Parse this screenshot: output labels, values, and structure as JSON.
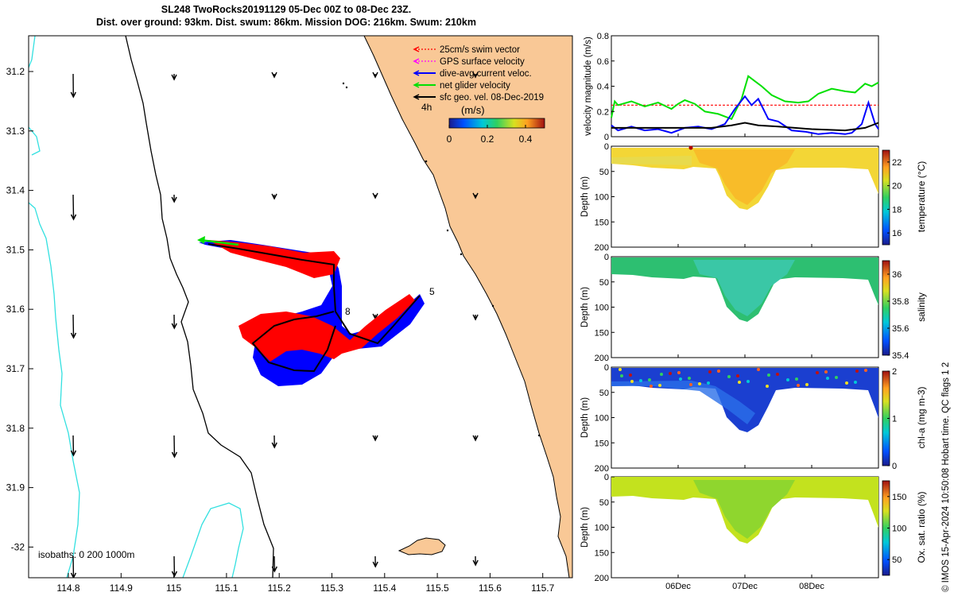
{
  "title": {
    "line1": "SL248 TwoRocks20191129 05-Dec 00Z to 08-Dec 23Z.",
    "line2": "Dist. over ground: 93km. Dist. swum: 86km. Mission DOG: 216km. Swum: 210km"
  },
  "credit": "© IMOS 15-Apr-2024 10:50:08 Hobart time. QC flags 1  2",
  "colors": {
    "land": "#f9c896",
    "coast": "#000000",
    "isobath_200": "#000000",
    "isobath_1000": "#33e0e0",
    "swim": "#ff0000",
    "current": "#0000ff",
    "net": "#00e000",
    "gps": "#ff00ff",
    "geo": "#000000"
  },
  "map": {
    "xticks": [
      "114.8",
      "114.9",
      "115",
      "115.1",
      "115.2",
      "115.3",
      "115.4",
      "115.5",
      "115.6",
      "115.7"
    ],
    "yticks": [
      "31.2",
      "31.3",
      "31.4",
      "31.5",
      "31.6",
      "31.7",
      "31.8",
      "31.9",
      "-32"
    ],
    "legend": [
      {
        "label": "25cm/s swim vector",
        "color": "#ff0000",
        "icon": "dashed-arrow-icon"
      },
      {
        "label": "GPS surface velocity",
        "color": "#ff00ff",
        "icon": "dashed-arrow-icon"
      },
      {
        "label": "dive-avg current veloc.",
        "color": "#0000ff",
        "icon": "arrow-icon"
      },
      {
        "label": "net glider velocity",
        "color": "#00e000",
        "icon": "arrow-icon"
      },
      {
        "label": "sfc geo. vel. 08-Dec-2019",
        "color": "#000000",
        "icon": "arrow-icon"
      }
    ],
    "time_label": "4h",
    "colorbar_unit": "(m/s)",
    "colorbar_ticks": [
      "0",
      "0.2",
      "0.4"
    ],
    "colorbar_range": [
      0,
      0.5
    ],
    "isobaths_label": "isobaths: 0   200  1000m",
    "track_labels": [
      "5",
      "8"
    ]
  },
  "chart_data": [
    {
      "type": "line",
      "ylabel": "velocity magnitude (m/s)",
      "ylim": [
        0,
        0.8
      ],
      "yticks": [
        "0",
        "0.2",
        "0.4",
        "0.6",
        "0.8"
      ],
      "xlim_days": [
        5,
        9
      ],
      "series": [
        {
          "color": "#ff0000",
          "style": "dashed",
          "x": [
            5.0,
            9.0
          ],
          "y": [
            0.25,
            0.25
          ]
        },
        {
          "color": "#00e000",
          "x": [
            5.0,
            5.05,
            5.1,
            5.3,
            5.5,
            5.7,
            5.9,
            6.0,
            6.1,
            6.25,
            6.4,
            6.6,
            6.8,
            6.95,
            7.05,
            7.15,
            7.25,
            7.4,
            7.6,
            7.8,
            7.95,
            8.1,
            8.3,
            8.5,
            8.65,
            8.8,
            8.9,
            9.0
          ],
          "y": [
            0.15,
            0.28,
            0.25,
            0.28,
            0.24,
            0.27,
            0.22,
            0.26,
            0.29,
            0.26,
            0.2,
            0.18,
            0.14,
            0.3,
            0.48,
            0.44,
            0.4,
            0.33,
            0.28,
            0.27,
            0.28,
            0.34,
            0.38,
            0.36,
            0.35,
            0.42,
            0.4,
            0.43
          ]
        },
        {
          "color": "#0000ff",
          "x": [
            5.0,
            5.1,
            5.3,
            5.5,
            5.7,
            5.9,
            6.1,
            6.3,
            6.5,
            6.7,
            6.85,
            7.0,
            7.1,
            7.2,
            7.35,
            7.5,
            7.7,
            7.9,
            8.1,
            8.3,
            8.5,
            8.6,
            8.75,
            8.85,
            8.95,
            9.0
          ],
          "y": [
            0.09,
            0.05,
            0.08,
            0.05,
            0.06,
            0.03,
            0.07,
            0.08,
            0.06,
            0.1,
            0.22,
            0.32,
            0.25,
            0.3,
            0.14,
            0.12,
            0.05,
            0.04,
            0.02,
            0.03,
            0.02,
            0.03,
            0.1,
            0.27,
            0.1,
            0.06
          ]
        },
        {
          "color": "#000000",
          "x": [
            5.0,
            5.5,
            6.0,
            6.5,
            6.8,
            7.0,
            7.2,
            7.5,
            8.0,
            8.5,
            8.8,
            9.0
          ],
          "y": [
            0.07,
            0.07,
            0.07,
            0.07,
            0.09,
            0.11,
            0.09,
            0.08,
            0.06,
            0.05,
            0.07,
            0.11
          ]
        }
      ]
    },
    {
      "type": "heatmap",
      "ylabel": "Depth (m)",
      "ylim": [
        0,
        200
      ],
      "yticks": [
        "0",
        "50",
        "100",
        "150",
        "200"
      ],
      "cbar_label": "temperature (°C)",
      "cbar_range": [
        15,
        23
      ],
      "cbar_ticks": [
        "16",
        "18",
        "20",
        "22"
      ]
    },
    {
      "type": "heatmap",
      "ylabel": "Depth (m)",
      "ylim": [
        0,
        200
      ],
      "yticks": [
        "0",
        "50",
        "100",
        "150",
        "200"
      ],
      "cbar_label": "salinity",
      "cbar_range": [
        35.4,
        36.1
      ],
      "cbar_ticks": [
        "35.4",
        "35.6",
        "35.8",
        "36"
      ]
    },
    {
      "type": "heatmap",
      "ylabel": "Depth (m)",
      "ylim": [
        0,
        200
      ],
      "yticks": [
        "0",
        "50",
        "100",
        "150",
        "200"
      ],
      "cbar_label": "chl-a (mg m-3)",
      "cbar_range": [
        0,
        2
      ],
      "cbar_ticks": [
        "0",
        "1",
        "2"
      ]
    },
    {
      "type": "heatmap",
      "ylabel": "Depth (m)",
      "ylim": [
        0,
        200
      ],
      "yticks": [
        "0",
        "50",
        "100",
        "150",
        "200"
      ],
      "xticks": [
        "06Dec",
        "07Dec",
        "08Dec"
      ],
      "cbar_label": "Ox. sat. ratio (%)",
      "cbar_range": [
        25,
        175
      ],
      "cbar_ticks": [
        "50",
        "100",
        "150"
      ]
    }
  ]
}
